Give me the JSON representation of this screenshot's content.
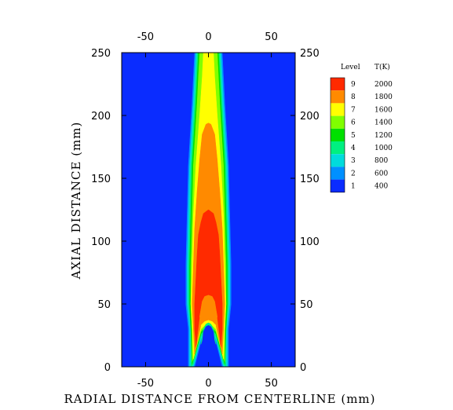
{
  "chart_data": {
    "type": "heatmap",
    "subtype": "filled-contour",
    "xlabel": "RADIAL DISTANCE FROM CENTERLINE (mm)",
    "ylabel": "AXIAL DISTANCE (mm)",
    "xlim": [
      -69,
      69
    ],
    "ylim": [
      0,
      250
    ],
    "x_ticks": [
      -50,
      0,
      50
    ],
    "y_ticks": [
      0,
      50,
      100,
      150,
      200,
      250
    ],
    "x_tick_labels": [
      "-50",
      "0",
      "50"
    ],
    "y_tick_labels": [
      "0",
      "50",
      "100",
      "150",
      "200",
      "250"
    ],
    "grid": false,
    "legend": {
      "placement": "right",
      "header_level": "Level",
      "header_value": "T(K)",
      "entries": [
        {
          "level": "9",
          "value": "2000",
          "color": "#ff2a00"
        },
        {
          "level": "8",
          "value": "1800",
          "color": "#ff8a00"
        },
        {
          "level": "7",
          "value": "1600",
          "color": "#ffff00"
        },
        {
          "level": "6",
          "value": "1400",
          "color": "#80ff00"
        },
        {
          "level": "5",
          "value": "1200",
          "color": "#00e000"
        },
        {
          "level": "4",
          "value": "1000",
          "color": "#00f080"
        },
        {
          "level": "3",
          "value": "800",
          "color": "#00dcdc"
        },
        {
          "level": "2",
          "value": "600",
          "color": "#0090ff"
        },
        {
          "level": "1",
          "value": "400",
          "color": "#0a2cff"
        }
      ]
    },
    "contours": [
      {
        "level": 1,
        "color": "#0a2cff",
        "points": [
          [
            -69,
            0
          ],
          [
            69,
            0
          ],
          [
            69,
            250
          ],
          [
            -69,
            250
          ]
        ]
      },
      {
        "level": 2,
        "color": "#0090ff",
        "points": [
          [
            -16,
            0
          ],
          [
            -16,
            30
          ],
          [
            -18,
            50
          ],
          [
            -18,
            80
          ],
          [
            -17,
            120
          ],
          [
            -16,
            160
          ],
          [
            -13,
            210
          ],
          [
            -11,
            250
          ],
          [
            11,
            250
          ],
          [
            13,
            210
          ],
          [
            16,
            160
          ],
          [
            17,
            120
          ],
          [
            18,
            80
          ],
          [
            18,
            50
          ],
          [
            16,
            30
          ],
          [
            16,
            0
          ],
          [
            11,
            0
          ],
          [
            6,
            20
          ],
          [
            0,
            30
          ],
          [
            -6,
            20
          ],
          [
            -11,
            0
          ]
        ]
      },
      {
        "level": 3,
        "color": "#00dcdc",
        "points": [
          [
            -15,
            0
          ],
          [
            -15,
            30
          ],
          [
            -17,
            50
          ],
          [
            -17,
            80
          ],
          [
            -16,
            120
          ],
          [
            -15,
            160
          ],
          [
            -12,
            210
          ],
          [
            -10,
            250
          ],
          [
            10,
            250
          ],
          [
            12,
            210
          ],
          [
            15,
            160
          ],
          [
            16,
            120
          ],
          [
            17,
            80
          ],
          [
            17,
            50
          ],
          [
            15,
            30
          ],
          [
            15,
            0
          ],
          [
            12,
            0
          ],
          [
            6,
            22
          ],
          [
            0,
            32
          ],
          [
            -6,
            22
          ],
          [
            -12,
            0
          ]
        ]
      },
      {
        "level": 4,
        "color": "#00f080",
        "points": [
          [
            -14,
            0
          ],
          [
            -14,
            30
          ],
          [
            -16,
            50
          ],
          [
            -16,
            80
          ],
          [
            -15,
            120
          ],
          [
            -14,
            160
          ],
          [
            -11,
            210
          ],
          [
            -9,
            250
          ],
          [
            9,
            250
          ],
          [
            11,
            210
          ],
          [
            14,
            160
          ],
          [
            15,
            120
          ],
          [
            16,
            80
          ],
          [
            16,
            50
          ],
          [
            14,
            30
          ],
          [
            14,
            0
          ],
          [
            12,
            2
          ],
          [
            6,
            24
          ],
          [
            0,
            33
          ],
          [
            -6,
            24
          ],
          [
            -12,
            2
          ]
        ]
      },
      {
        "level": 5,
        "color": "#00e000",
        "points": [
          [
            -13,
            2
          ],
          [
            -14,
            30
          ],
          [
            -15,
            50
          ],
          [
            -15,
            80
          ],
          [
            -14,
            120
          ],
          [
            -13,
            160
          ],
          [
            -10,
            210
          ],
          [
            -8,
            250
          ],
          [
            8,
            250
          ],
          [
            10,
            210
          ],
          [
            13,
            160
          ],
          [
            14,
            120
          ],
          [
            15,
            80
          ],
          [
            15,
            50
          ],
          [
            14,
            30
          ],
          [
            13,
            2
          ],
          [
            6,
            26
          ],
          [
            0,
            34
          ],
          [
            -6,
            26
          ]
        ]
      },
      {
        "level": 6,
        "color": "#80ff00",
        "points": [
          [
            -13,
            4
          ],
          [
            -13,
            30
          ],
          [
            -14,
            50
          ],
          [
            -14,
            80
          ],
          [
            -13,
            120
          ],
          [
            -12,
            160
          ],
          [
            -9,
            210
          ],
          [
            -7,
            250
          ],
          [
            7,
            250
          ],
          [
            9,
            210
          ],
          [
            12,
            160
          ],
          [
            13,
            120
          ],
          [
            14,
            80
          ],
          [
            14,
            50
          ],
          [
            13,
            30
          ],
          [
            13,
            4
          ],
          [
            6,
            28
          ],
          [
            0,
            35
          ],
          [
            -6,
            28
          ]
        ]
      },
      {
        "level": 7,
        "color": "#ffff00",
        "points": [
          [
            -12,
            6
          ],
          [
            -13,
            30
          ],
          [
            -14,
            50
          ],
          [
            -13,
            80
          ],
          [
            -12,
            120
          ],
          [
            -10,
            160
          ],
          [
            -7,
            200
          ],
          [
            -5,
            230
          ],
          [
            -4,
            250
          ],
          [
            4,
            250
          ],
          [
            5,
            230
          ],
          [
            7,
            200
          ],
          [
            10,
            160
          ],
          [
            12,
            120
          ],
          [
            13,
            80
          ],
          [
            14,
            50
          ],
          [
            13,
            30
          ],
          [
            12,
            6
          ],
          [
            6,
            30
          ],
          [
            0,
            36
          ],
          [
            -6,
            30
          ]
        ]
      },
      {
        "level": 8,
        "color": "#ff8a00",
        "points": [
          [
            -11,
            10
          ],
          [
            -12,
            30
          ],
          [
            -13,
            50
          ],
          [
            -12,
            80
          ],
          [
            -11,
            110
          ],
          [
            -9,
            140
          ],
          [
            -7,
            165
          ],
          [
            -5,
            185
          ],
          [
            -2,
            193
          ],
          [
            0,
            194
          ],
          [
            2,
            193
          ],
          [
            5,
            185
          ],
          [
            7,
            165
          ],
          [
            9,
            140
          ],
          [
            11,
            110
          ],
          [
            12,
            80
          ],
          [
            13,
            50
          ],
          [
            12,
            30
          ],
          [
            11,
            10
          ],
          [
            6,
            33
          ],
          [
            0,
            37
          ],
          [
            -6,
            33
          ]
        ]
      },
      {
        "level": 9,
        "color": "#ff2a00",
        "points": [
          [
            -10,
            16
          ],
          [
            -11,
            30
          ],
          [
            -11,
            50
          ],
          [
            -10,
            70
          ],
          [
            -9,
            90
          ],
          [
            -8,
            105
          ],
          [
            -6,
            115
          ],
          [
            -4,
            122
          ],
          [
            0,
            125
          ],
          [
            4,
            122
          ],
          [
            6,
            115
          ],
          [
            8,
            105
          ],
          [
            9,
            90
          ],
          [
            10,
            70
          ],
          [
            11,
            50
          ],
          [
            11,
            30
          ],
          [
            10,
            16
          ],
          [
            7,
            40
          ],
          [
            5,
            52
          ],
          [
            3,
            56
          ],
          [
            0,
            57
          ],
          [
            -3,
            56
          ],
          [
            -5,
            52
          ],
          [
            -7,
            40
          ]
        ]
      },
      {
        "level": 8,
        "color": "#ff8a00",
        "points": [
          [
            -7,
            40
          ],
          [
            -6,
            34
          ],
          [
            -4,
            36
          ],
          [
            0,
            37
          ],
          [
            4,
            36
          ],
          [
            6,
            34
          ],
          [
            7,
            40
          ],
          [
            5,
            52
          ],
          [
            3,
            56
          ],
          [
            0,
            57
          ],
          [
            -3,
            56
          ],
          [
            -5,
            52
          ]
        ]
      },
      {
        "level": 7,
        "color": "#ffff00",
        "points": [
          [
            -6,
            33
          ],
          [
            -3,
            36
          ],
          [
            0,
            37
          ],
          [
            3,
            36
          ],
          [
            6,
            33
          ],
          [
            4,
            34
          ],
          [
            0,
            35
          ],
          [
            -4,
            34
          ]
        ]
      },
      {
        "level": 4,
        "color": "#00f080",
        "points": [
          [
            -6,
            18
          ],
          [
            -4,
            30
          ],
          [
            -2,
            34
          ],
          [
            0,
            35
          ],
          [
            2,
            34
          ],
          [
            4,
            30
          ],
          [
            6,
            18
          ],
          [
            4,
            24
          ],
          [
            0,
            33
          ],
          [
            -4,
            24
          ]
        ]
      },
      {
        "level": 1,
        "color": "#0a2cff",
        "points": [
          [
            -5,
            0
          ],
          [
            -5,
            18
          ],
          [
            -4,
            28
          ],
          [
            -2,
            32
          ],
          [
            0,
            33
          ],
          [
            2,
            32
          ],
          [
            4,
            28
          ],
          [
            5,
            18
          ],
          [
            5,
            0
          ]
        ]
      }
    ]
  }
}
